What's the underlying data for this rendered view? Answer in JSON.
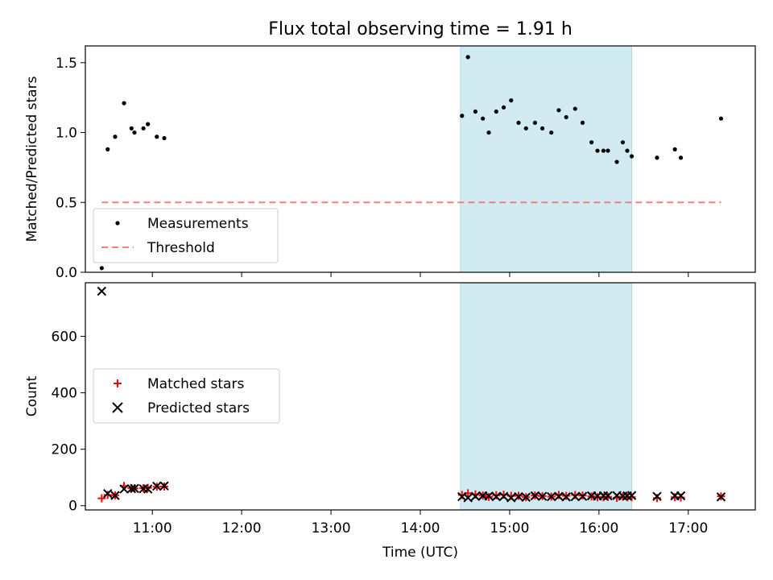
{
  "title": "Flux total observing time = 1.91 h",
  "chart_data": [
    {
      "type": "scatter",
      "panel": "top",
      "ylabel": "Matched/Predicted stars",
      "xlabel": "",
      "xlim": [
        "10:15",
        "17:45"
      ],
      "ylim": [
        0,
        1.62
      ],
      "yticks": [
        0.0,
        0.5,
        1.0,
        1.5
      ],
      "ytick_labels": [
        "0.0",
        "0.5",
        "1.0",
        "1.5"
      ],
      "grid": false,
      "legend_placement": "lower-left",
      "shaded_interval": {
        "start": "14:27",
        "end": "16:22",
        "color": "#add8e6"
      },
      "series": [
        {
          "name": "Measurements",
          "kind": "scatter",
          "color": "#000000",
          "x": [
            "10:26",
            "10:30",
            "10:35",
            "10:41",
            "10:46",
            "10:48",
            "10:54",
            "10:57",
            "11:03",
            "11:08",
            "14:28",
            "14:32",
            "14:37",
            "14:42",
            "14:46",
            "14:51",
            "14:56",
            "15:01",
            "15:06",
            "15:11",
            "15:17",
            "15:22",
            "15:28",
            "15:33",
            "15:38",
            "15:44",
            "15:49",
            "15:55",
            "15:59",
            "16:03",
            "16:06",
            "16:12",
            "16:16",
            "16:19",
            "16:22",
            "16:39",
            "16:51",
            "16:55",
            "17:22"
          ],
          "y": [
            0.03,
            0.88,
            0.97,
            1.21,
            1.03,
            1.0,
            1.03,
            1.06,
            0.97,
            0.96,
            1.12,
            1.54,
            1.15,
            1.1,
            1.0,
            1.15,
            1.18,
            1.23,
            1.07,
            1.03,
            1.07,
            1.03,
            1.0,
            1.16,
            1.11,
            1.17,
            1.07,
            0.93,
            0.87,
            0.87,
            0.87,
            0.79,
            0.93,
            0.87,
            0.83,
            0.82,
            0.88,
            0.82,
            1.1
          ]
        },
        {
          "name": "Threshold",
          "kind": "line",
          "style": "dashed",
          "color": "#f08080",
          "x": [
            "10:26",
            "17:22"
          ],
          "y": [
            0.5,
            0.5
          ]
        }
      ]
    },
    {
      "type": "scatter",
      "panel": "bottom",
      "ylabel": "Count",
      "xlabel": "Time (UTC)",
      "xlim": [
        "10:15",
        "17:45"
      ],
      "ylim": [
        -15,
        790
      ],
      "yticks": [
        0,
        200,
        400,
        600
      ],
      "ytick_labels": [
        "0",
        "200",
        "400",
        "600"
      ],
      "xticks": [
        "11:00",
        "12:00",
        "13:00",
        "14:00",
        "15:00",
        "16:00",
        "17:00"
      ],
      "grid": false,
      "legend_placement": "center-left",
      "shaded_interval": {
        "start": "14:27",
        "end": "16:22",
        "color": "#add8e6"
      },
      "series": [
        {
          "name": "Matched stars",
          "kind": "scatter",
          "marker": "+",
          "color": "#ff0000",
          "x": [
            "10:26",
            "10:30",
            "10:35",
            "10:41",
            "10:46",
            "10:48",
            "10:54",
            "10:57",
            "11:03",
            "11:08",
            "14:28",
            "14:32",
            "14:37",
            "14:42",
            "14:46",
            "14:51",
            "14:56",
            "15:01",
            "15:06",
            "15:11",
            "15:17",
            "15:22",
            "15:28",
            "15:33",
            "15:38",
            "15:44",
            "15:49",
            "15:55",
            "15:59",
            "16:03",
            "16:06",
            "16:12",
            "16:16",
            "16:19",
            "16:22",
            "16:39",
            "16:51",
            "16:55",
            "17:22"
          ],
          "y": [
            26,
            38,
            37,
            70,
            62,
            61,
            62,
            63,
            67,
            68,
            38,
            44,
            40,
            36,
            31,
            37,
            39,
            35,
            35,
            30,
            36,
            34,
            32,
            38,
            35,
            38,
            36,
            33,
            30,
            30,
            31,
            28,
            32,
            30,
            30,
            27,
            30,
            29,
            33
          ]
        },
        {
          "name": "Predicted stars",
          "kind": "scatter",
          "marker": "x",
          "color": "#000000",
          "x": [
            "10:26",
            "10:30",
            "10:35",
            "10:41",
            "10:46",
            "10:48",
            "10:54",
            "10:57",
            "11:03",
            "11:08",
            "14:28",
            "14:32",
            "14:37",
            "14:42",
            "14:46",
            "14:51",
            "14:56",
            "15:01",
            "15:06",
            "15:11",
            "15:17",
            "15:22",
            "15:28",
            "15:33",
            "15:38",
            "15:44",
            "15:49",
            "15:55",
            "15:59",
            "16:03",
            "16:06",
            "16:12",
            "16:16",
            "16:19",
            "16:22",
            "16:39",
            "16:51",
            "16:55",
            "17:22"
          ],
          "y": [
            760,
            43,
            36,
            59,
            60,
            61,
            60,
            59,
            69,
            70,
            32,
            28,
            33,
            35,
            34,
            32,
            33,
            28,
            32,
            30,
            35,
            33,
            32,
            33,
            31,
            32,
            33,
            35,
            34,
            35,
            35,
            36,
            34,
            35,
            36,
            33,
            35,
            35,
            31
          ]
        }
      ]
    }
  ]
}
